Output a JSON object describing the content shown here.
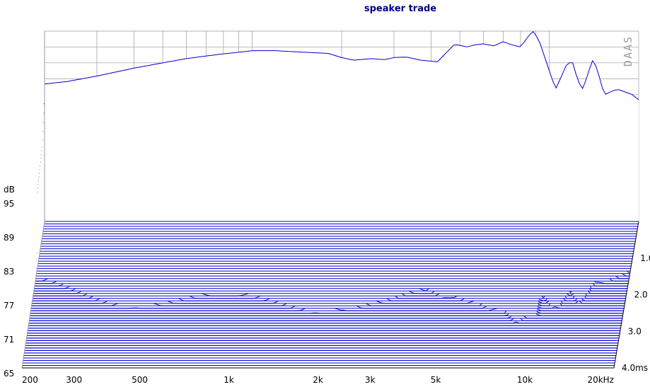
{
  "chart_data": {
    "type": "waterfall",
    "title": "speaker trade",
    "brand": "DAAS",
    "colors": {
      "trace": "#0000cc",
      "grid": "#9a9a9a",
      "title": "#00008b"
    },
    "x_axis": {
      "scale": "log",
      "range_hz": [
        200,
        20000
      ],
      "tick_labels": [
        {
          "hz": 200,
          "label": "200"
        },
        {
          "hz": 300,
          "label": "300"
        },
        {
          "hz": 500,
          "label": "500"
        },
        {
          "hz": 1000,
          "label": "1k"
        },
        {
          "hz": 2000,
          "label": "2k"
        },
        {
          "hz": 3000,
          "label": "3k"
        },
        {
          "hz": 5000,
          "label": "5k"
        },
        {
          "hz": 10000,
          "label": "10k"
        },
        {
          "hz": 20000,
          "label": "20kHz"
        }
      ]
    },
    "y_axis": {
      "unit": "dB",
      "range_db": [
        65,
        101
      ],
      "tick_labels": [
        {
          "db": 95,
          "label": "95"
        },
        {
          "db": 89,
          "label": "89"
        },
        {
          "db": 83,
          "label": "83"
        },
        {
          "db": 77,
          "label": "77"
        },
        {
          "db": 71,
          "label": "71"
        },
        {
          "db": 65,
          "label": "65"
        }
      ]
    },
    "z_axis": {
      "unit": "ms",
      "range_ms": [
        0,
        4.0
      ],
      "tick_labels": [
        {
          "ms": 1.0,
          "label": "1.0"
        },
        {
          "ms": 2.0,
          "label": "2.0"
        },
        {
          "ms": 3.0,
          "label": "3.0"
        },
        {
          "ms": 4.0,
          "label": "4.0ms"
        }
      ]
    },
    "slices": 60,
    "first_slice_response": {
      "freq_hz": [
        200,
        240,
        300,
        400,
        500,
        600,
        700,
        800,
        900,
        1000,
        1200,
        1500,
        1800,
        2000,
        2200,
        2500,
        2800,
        3000,
        3300,
        3700,
        4200,
        4800,
        5300,
        5600,
        6000,
        6500,
        7000,
        7500,
        8000,
        8500,
        8800,
        9200,
        9800,
        10500,
        11000,
        11500,
        12000,
        12500,
        13000,
        13500,
        14000,
        14500,
        15000,
        15500,
        16000,
        17000,
        18000,
        19000,
        20000
      ],
      "db": [
        91.0,
        91.5,
        92.5,
        94.0,
        95.0,
        95.8,
        96.3,
        96.7,
        97.0,
        97.3,
        97.3,
        97.0,
        96.8,
        96.0,
        95.5,
        95.8,
        95.6,
        96.0,
        96.1,
        95.5,
        95.2,
        98.5,
        98.0,
        98.4,
        98.6,
        98.2,
        99.0,
        98.4,
        98.0,
        100.0,
        101.0,
        99.5,
        95.0,
        90.0,
        92.5,
        95.0,
        95.0,
        91.5,
        90.0,
        93.0,
        95.5,
        94.0,
        90.5,
        89.0,
        89.5,
        90.0,
        89.5,
        89.0,
        88.0
      ]
    },
    "late_mode": {
      "freq_hz": 9200,
      "db": 82.5,
      "decay_ms_to": 2.6
    },
    "grid": true
  }
}
